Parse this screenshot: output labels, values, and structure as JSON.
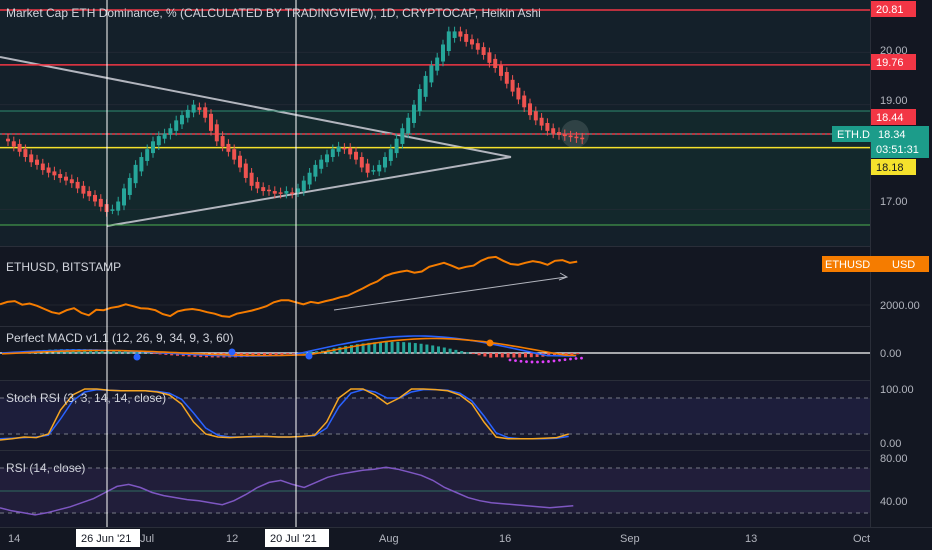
{
  "chart_data": {
    "type": "candlestick",
    "title": "Market Cap ETH Dominance, % (CALCULATED BY TRADINGVIEW), 1D, CRYPTOCAP, Heikin Ashi",
    "x_ticks": [
      "14",
      "Jul",
      "12",
      "Aug",
      "16",
      "Sep",
      "13",
      "Oct"
    ],
    "crosshair_dates": [
      "26 Jun '21",
      "20 Jul '21"
    ],
    "main_pane": {
      "y_ticks": [
        "20.00",
        "19.00",
        "17.00"
      ],
      "ylim": [
        16.3,
        21.0
      ],
      "horizontal_levels": [
        {
          "value": 20.81,
          "label": "20.81",
          "color": "#f23645"
        },
        {
          "value": 19.76,
          "label": "19.76",
          "color": "#f23645"
        },
        {
          "value": 18.44,
          "label": "18.44",
          "color": "#f23645"
        },
        {
          "value": 18.18,
          "label": "18.18",
          "color": "#f5e12c"
        }
      ],
      "last_value": {
        "symbol": "ETH.D",
        "value": "18.34",
        "countdown": "03:51:31"
      },
      "close_series": [
        18.3,
        18.2,
        18.1,
        18.0,
        17.9,
        17.85,
        17.75,
        17.7,
        17.65,
        17.6,
        17.55,
        17.5,
        17.4,
        17.3,
        17.25,
        17.15,
        17.05,
        16.95,
        17.0,
        17.15,
        17.4,
        17.6,
        17.85,
        18.0,
        18.15,
        18.3,
        18.4,
        18.45,
        18.55,
        18.7,
        18.8,
        18.9,
        19.0,
        18.9,
        18.75,
        18.5,
        18.3,
        18.2,
        18.1,
        17.95,
        17.8,
        17.6,
        17.45,
        17.4,
        17.35,
        17.35,
        17.3,
        17.3,
        17.35,
        17.3,
        17.4,
        17.55,
        17.7,
        17.85,
        17.95,
        18.05,
        18.15,
        18.2,
        18.15,
        18.05,
        17.95,
        17.8,
        17.7,
        17.75,
        17.85,
        18.0,
        18.15,
        18.35,
        18.55,
        18.75,
        19.0,
        19.3,
        19.55,
        19.75,
        19.9,
        20.15,
        20.4,
        20.4,
        20.3,
        20.2,
        20.15,
        20.05,
        19.95,
        19.8,
        19.7,
        19.55,
        19.4,
        19.25,
        19.1,
        18.95,
        18.8,
        18.7,
        18.6,
        18.5,
        18.45,
        18.42,
        18.4,
        18.38,
        18.36,
        18.34
      ]
    },
    "ethusd_pane": {
      "label": "ETHUSD, BITSTAMP",
      "badge": "ETHUSD · 3",
      "unit": "USD",
      "y_ticks": [
        "2000.00"
      ],
      "ylim": [
        1700,
        3600
      ],
      "series": [
        2200,
        2260,
        2280,
        2190,
        2220,
        2160,
        2080,
        2000,
        1960,
        2050,
        2100,
        1980,
        1920,
        2060,
        2050,
        2110,
        2140,
        2200,
        2150,
        2100,
        2090,
        2050,
        1950,
        1900,
        2020,
        2060,
        2080,
        2050,
        2000,
        1960,
        1900,
        1880,
        1960,
        2000,
        2040,
        2090,
        2150,
        2250,
        2300,
        2300,
        2250,
        2200,
        2260,
        2230,
        2280,
        2320,
        2380,
        2420,
        2510,
        2600,
        2700,
        2780,
        2910,
        2980,
        3020,
        3050,
        3000,
        3030,
        3150,
        3200,
        3250,
        3180,
        3100,
        3150,
        3180,
        3300,
        3380,
        3400,
        3300,
        3220,
        3200,
        3250,
        3290,
        3260,
        3200,
        3300,
        3320,
        3250,
        3280
      ]
    },
    "macd_pane": {
      "label": "Perfect MACD v1.1 (12, 26, 9, 34, 9, 3, 60)",
      "y_ticks": [
        "0.00"
      ]
    },
    "stoch_pane": {
      "label": "Stoch RSI (3, 3, 14, 14, close)",
      "y_ticks": [
        "100.00",
        "0.00"
      ],
      "k": [
        10,
        12,
        15,
        14,
        20,
        60,
        85,
        95,
        95,
        93,
        92,
        92,
        92,
        90,
        85,
        70,
        40,
        20,
        15,
        14,
        15,
        16,
        16,
        15,
        15,
        16,
        18,
        40,
        80,
        95,
        95,
        85,
        70,
        80,
        95,
        95,
        94,
        92,
        85,
        70,
        40,
        15,
        12,
        12,
        12,
        13,
        14,
        20
      ],
      "d": [
        12,
        13,
        14,
        15,
        18,
        45,
        75,
        90,
        94,
        93,
        92,
        92,
        92,
        91,
        88,
        78,
        55,
        30,
        18,
        15,
        15,
        15,
        16,
        15,
        15,
        16,
        17,
        30,
        65,
        88,
        94,
        90,
        80,
        80,
        90,
        94,
        94,
        93,
        88,
        75,
        50,
        22,
        14,
        12,
        12,
        12,
        13,
        16
      ]
    },
    "rsi_pane": {
      "label": "RSI (14, close)",
      "y_ticks": [
        "80.00",
        "40.00"
      ],
      "series": [
        35,
        32,
        30,
        28,
        30,
        33,
        36,
        40,
        44,
        50,
        56,
        58,
        55,
        50,
        47,
        45,
        43,
        42,
        40,
        38,
        42,
        48,
        55,
        60,
        62,
        58,
        55,
        60,
        65,
        68,
        70,
        72,
        73,
        75,
        73,
        70,
        67,
        62,
        55,
        50,
        45,
        42,
        40,
        39,
        38,
        37,
        36,
        35,
        36,
        37
      ]
    }
  }
}
